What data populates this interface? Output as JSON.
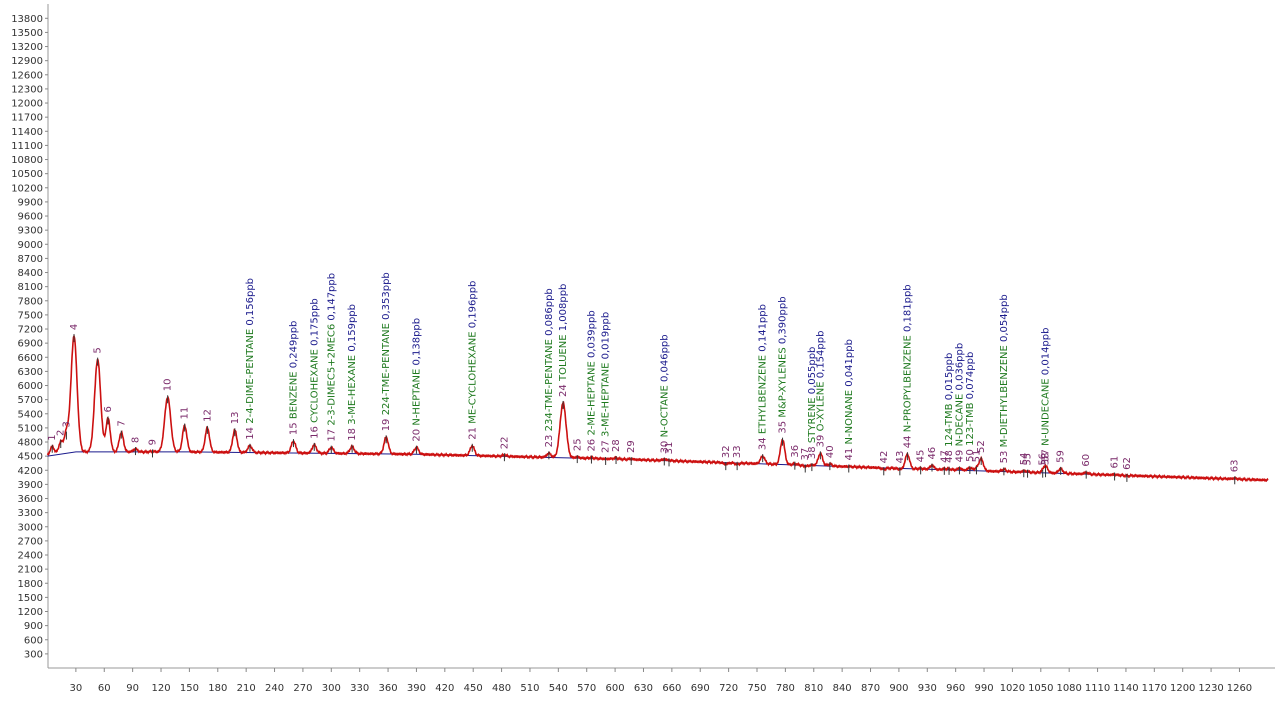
{
  "chart_data": {
    "type": "line",
    "title": "",
    "xlabel": "",
    "ylabel": "",
    "xlim": [
      0,
      1290
    ],
    "ylim": [
      0,
      14100
    ],
    "x_ticks": [
      "30",
      "60",
      "90",
      "120",
      "150",
      "180",
      "210",
      "240",
      "270",
      "300",
      "330",
      "360",
      "390",
      "420",
      "450",
      "480",
      "510",
      "540",
      "570",
      "600",
      "630",
      "660",
      "690",
      "720",
      "750",
      "780",
      "810",
      "840",
      "870",
      "900",
      "930",
      "960",
      "990",
      "1020",
      "1050",
      "1080",
      "1110",
      "1140",
      "1170",
      "1200",
      "1230",
      "1260"
    ],
    "y_ticks": [
      "300",
      "600",
      "900",
      "1200",
      "1500",
      "1800",
      "2100",
      "2400",
      "2700",
      "3000",
      "3300",
      "3600",
      "3900",
      "4200",
      "4500",
      "4800",
      "5100",
      "5400",
      "5700",
      "6000",
      "6300",
      "6600",
      "6900",
      "7200",
      "7500",
      "7800",
      "8100",
      "8400",
      "8700",
      "9000",
      "9300",
      "9600",
      "9900",
      "10200",
      "10500",
      "10800",
      "11100",
      "11400",
      "11700",
      "12000",
      "12300",
      "12600",
      "12900",
      "13200",
      "13500",
      "13800"
    ],
    "colors": {
      "signal": "#cc1010",
      "baseline": "#1a1a8c",
      "compound": "#1f7a1f",
      "concentration": "#1a1a8c",
      "peak_number": "#7a2a6a"
    },
    "baseline": [
      [
        0,
        4500
      ],
      [
        30,
        4590
      ],
      [
        150,
        4590
      ],
      [
        390,
        4540
      ],
      [
        600,
        4440
      ],
      [
        900,
        4240
      ],
      [
        1110,
        4110
      ],
      [
        1290,
        3990
      ]
    ],
    "peaks": [
      {
        "n": "1",
        "x": 5,
        "h": 4700
      },
      {
        "n": "2",
        "x": 14,
        "h": 4800
      },
      {
        "n": "3",
        "x": 20,
        "h": 4980
      },
      {
        "n": "4",
        "x": 28,
        "h": 7050
      },
      {
        "n": "5",
        "x": 53,
        "h": 6550
      },
      {
        "n": "6",
        "x": 64,
        "h": 5300
      },
      {
        "n": "7",
        "x": 78,
        "h": 5000
      },
      {
        "n": "8",
        "x": 93,
        "h": 4650
      },
      {
        "n": "9",
        "x": 111,
        "h": 4600
      },
      {
        "n": "10",
        "x": 127,
        "h": 5750
      },
      {
        "n": "11",
        "x": 145,
        "h": 5150
      },
      {
        "n": "12",
        "x": 169,
        "h": 5100
      },
      {
        "n": "13",
        "x": 198,
        "h": 5050
      },
      {
        "n": "14",
        "x": 214,
        "h": 4720
      },
      {
        "n": "15",
        "x": 260,
        "h": 4820
      },
      {
        "n": "16",
        "x": 282,
        "h": 4740
      },
      {
        "n": "17",
        "x": 300,
        "h": 4680
      },
      {
        "n": "18",
        "x": 322,
        "h": 4700
      },
      {
        "n": "19",
        "x": 358,
        "h": 4900
      },
      {
        "n": "20",
        "x": 390,
        "h": 4680
      },
      {
        "n": "21",
        "x": 449,
        "h": 4720
      },
      {
        "n": "22",
        "x": 483,
        "h": 4520
      },
      {
        "n": "23",
        "x": 530,
        "h": 4560
      },
      {
        "n": "24",
        "x": 545,
        "h": 5630
      },
      {
        "n": "25",
        "x": 560,
        "h": 4480
      },
      {
        "n": "26",
        "x": 575,
        "h": 4470
      },
      {
        "n": "27",
        "x": 590,
        "h": 4440
      },
      {
        "n": "28",
        "x": 601,
        "h": 4460
      },
      {
        "n": "29",
        "x": 617,
        "h": 4440
      },
      {
        "n": "30",
        "x": 652,
        "h": 4430
      },
      {
        "n": "31",
        "x": 657,
        "h": 4410
      },
      {
        "n": "32",
        "x": 717,
        "h": 4330
      },
      {
        "n": "33",
        "x": 729,
        "h": 4330
      },
      {
        "n": "34",
        "x": 756,
        "h": 4500
      },
      {
        "n": "35",
        "x": 777,
        "h": 4850
      },
      {
        "n": "36",
        "x": 790,
        "h": 4340
      },
      {
        "n": "37",
        "x": 801,
        "h": 4280
      },
      {
        "n": "38",
        "x": 808,
        "h": 4310
      },
      {
        "n": "39",
        "x": 817,
        "h": 4560
      },
      {
        "n": "40",
        "x": 827,
        "h": 4330
      },
      {
        "n": "41",
        "x": 847,
        "h": 4280
      },
      {
        "n": "42",
        "x": 884,
        "h": 4220
      },
      {
        "n": "43",
        "x": 901,
        "h": 4220
      },
      {
        "n": "44",
        "x": 909,
        "h": 4540
      },
      {
        "n": "45",
        "x": 923,
        "h": 4240
      },
      {
        "n": "46",
        "x": 935,
        "h": 4300
      },
      {
        "n": "47",
        "x": 948,
        "h": 4230
      },
      {
        "n": "48",
        "x": 953,
        "h": 4230
      },
      {
        "n": "49",
        "x": 964,
        "h": 4240
      },
      {
        "n": "50",
        "x": 975,
        "h": 4250
      },
      {
        "n": "51",
        "x": 982,
        "h": 4240
      },
      {
        "n": "52",
        "x": 987,
        "h": 4440
      },
      {
        "n": "53",
        "x": 1011,
        "h": 4220
      },
      {
        "n": "54",
        "x": 1032,
        "h": 4180
      },
      {
        "n": "55",
        "x": 1036,
        "h": 4170
      },
      {
        "n": "56",
        "x": 1052,
        "h": 4170
      },
      {
        "n": "57",
        "x": 1055,
        "h": 4250
      },
      {
        "n": "58",
        "x": 1055,
        "h": 4180
      },
      {
        "n": "59",
        "x": 1071,
        "h": 4230
      },
      {
        "n": "60",
        "x": 1098,
        "h": 4150
      },
      {
        "n": "61",
        "x": 1128,
        "h": 4110
      },
      {
        "n": "62",
        "x": 1141,
        "h": 4080
      },
      {
        "n": "63",
        "x": 1255,
        "h": 4030
      }
    ],
    "compound_labels": [
      {
        "x": 214,
        "name": "2-4-DIME-PENTANE",
        "conc": "0,156ppb"
      },
      {
        "x": 260,
        "name": "BENZENE",
        "conc": "0,249ppb"
      },
      {
        "x": 282,
        "name": "CYCLOHEXANE",
        "conc": "0,175ppb"
      },
      {
        "x": 300,
        "name": "2-3-DIMEC5+2MEC6",
        "conc": "0,147ppb"
      },
      {
        "x": 322,
        "name": "3-ME-HEXANE",
        "conc": "0,159ppb"
      },
      {
        "x": 358,
        "name": "224-TME-PENTANE",
        "conc": "0,353ppb"
      },
      {
        "x": 390,
        "name": "N-HEPTANE",
        "conc": "0,138ppb"
      },
      {
        "x": 449,
        "name": "ME-CYCLOHEXANE",
        "conc": "0,196ppb"
      },
      {
        "x": 530,
        "name": "234-TME-PENTANE",
        "conc": "0,086ppb"
      },
      {
        "x": 545,
        "name": "TOLUENE",
        "conc": "1,008ppb"
      },
      {
        "x": 575,
        "name": "2-ME-HEPTANE",
        "conc": "0,039ppb"
      },
      {
        "x": 590,
        "name": "3-ME-HEPTANE",
        "conc": "0,019ppb"
      },
      {
        "x": 652,
        "name": "N-OCTANE",
        "conc": "0,046ppb"
      },
      {
        "x": 756,
        "name": "ETHYLBENZENE",
        "conc": "0,141ppb"
      },
      {
        "x": 777,
        "name": "M&P-XYLENES",
        "conc": "0,390ppb"
      },
      {
        "x": 808,
        "name": "STYRENE",
        "conc": "0,055ppb"
      },
      {
        "x": 817,
        "name": "O-XYLENE",
        "conc": "0,154ppb"
      },
      {
        "x": 847,
        "name": "N-NONANE",
        "conc": "0,041ppb"
      },
      {
        "x": 909,
        "name": "N-PROPYLBENZENE",
        "conc": "0,181ppb"
      },
      {
        "x": 953,
        "name": "124-TMB",
        "conc": "0,015ppb"
      },
      {
        "x": 964,
        "name": "N-DECANE",
        "conc": "0,036ppb"
      },
      {
        "x": 975,
        "name": "123-TMB",
        "conc": "0,074ppb"
      },
      {
        "x": 1011,
        "name": "M-DIETHYLBENZENE",
        "conc": "0,054ppb"
      },
      {
        "x": 1055,
        "name": "N-UNDECANE",
        "conc": "0,014ppb"
      }
    ]
  }
}
